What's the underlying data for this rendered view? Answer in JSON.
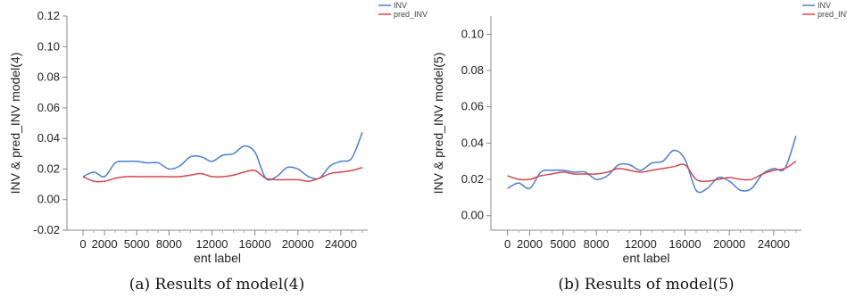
{
  "chart_data": [
    {
      "type": "line",
      "xlabel": "ent label",
      "ylabel": "INV & pred_INV model(4)",
      "caption": "(a) Results of model(4)",
      "xlim": [
        -1500,
        26500
      ],
      "ylim": [
        -0.02,
        0.12
      ],
      "xticks": [
        0,
        2000,
        5000,
        8000,
        12000,
        16000,
        20000,
        24000
      ],
      "xtick_labels": [
        "0",
        "2000",
        "5000",
        "8000",
        "12000",
        "16000",
        "20000",
        "24000"
      ],
      "yticks": [
        -0.02,
        0.0,
        0.02,
        0.04,
        0.06,
        0.08,
        0.1,
        0.12
      ],
      "ytick_labels": [
        "-0.02",
        "0.00",
        "0.02",
        "0.04",
        "0.06",
        "0.08",
        "0.10",
        "0.12"
      ],
      "grid": false,
      "legend_position": "top-right outside",
      "x": [
        0,
        1000,
        2000,
        3000,
        4000,
        5000,
        6000,
        7000,
        8000,
        9000,
        10000,
        11000,
        12000,
        13000,
        14000,
        15000,
        16000,
        17000,
        18000,
        19000,
        20000,
        21000,
        22000,
        23000,
        24000,
        25000,
        26000
      ],
      "series": [
        {
          "name": "INV",
          "color": "#4a7fd4",
          "values": [
            0.015,
            0.018,
            0.015,
            0.024,
            0.025,
            0.025,
            0.024,
            0.024,
            0.02,
            0.022,
            0.028,
            0.028,
            0.025,
            0.029,
            0.03,
            0.035,
            0.031,
            0.014,
            0.015,
            0.021,
            0.02,
            0.015,
            0.014,
            0.022,
            0.025,
            0.027,
            0.044
          ]
        },
        {
          "name": "pred_INV",
          "color": "#d2474f",
          "values": [
            0.015,
            0.012,
            0.012,
            0.014,
            0.015,
            0.015,
            0.015,
            0.015,
            0.015,
            0.015,
            0.016,
            0.017,
            0.015,
            0.015,
            0.016,
            0.018,
            0.019,
            0.014,
            0.013,
            0.013,
            0.013,
            0.012,
            0.014,
            0.017,
            0.018,
            0.019,
            0.021
          ]
        }
      ]
    },
    {
      "type": "line",
      "xlabel": "ent label",
      "ylabel": "INV & pred_INV model(5)",
      "caption": "(b) Results of model(5)",
      "xlim": [
        -1500,
        26500
      ],
      "ylim": [
        -0.008,
        0.11
      ],
      "xticks": [
        0,
        2000,
        5000,
        8000,
        12000,
        16000,
        20000,
        24000
      ],
      "xtick_labels": [
        "0",
        "2000",
        "5000",
        "8000",
        "12000",
        "16000",
        "20000",
        "24000"
      ],
      "yticks": [
        0.0,
        0.02,
        0.04,
        0.06,
        0.08,
        0.1
      ],
      "ytick_labels": [
        "0.00",
        "0.02",
        "0.04",
        "0.06",
        "0.08",
        "0.10"
      ],
      "grid": false,
      "legend_position": "top-right outside",
      "x": [
        0,
        1000,
        2000,
        3000,
        4000,
        5000,
        6000,
        7000,
        8000,
        9000,
        10000,
        11000,
        12000,
        13000,
        14000,
        15000,
        16000,
        17000,
        18000,
        19000,
        20000,
        21000,
        22000,
        23000,
        24000,
        25000,
        26000
      ],
      "series": [
        {
          "name": "INV",
          "color": "#4a7fd4",
          "values": [
            0.015,
            0.018,
            0.015,
            0.024,
            0.025,
            0.025,
            0.024,
            0.024,
            0.02,
            0.022,
            0.028,
            0.028,
            0.025,
            0.029,
            0.03,
            0.036,
            0.031,
            0.014,
            0.015,
            0.021,
            0.019,
            0.014,
            0.015,
            0.023,
            0.026,
            0.026,
            0.044
          ]
        },
        {
          "name": "pred_INV",
          "color": "#d2474f",
          "values": [
            0.022,
            0.02,
            0.02,
            0.022,
            0.023,
            0.024,
            0.023,
            0.023,
            0.023,
            0.024,
            0.026,
            0.025,
            0.024,
            0.025,
            0.026,
            0.027,
            0.028,
            0.02,
            0.019,
            0.02,
            0.021,
            0.02,
            0.02,
            0.023,
            0.025,
            0.026,
            0.03
          ]
        }
      ]
    }
  ]
}
